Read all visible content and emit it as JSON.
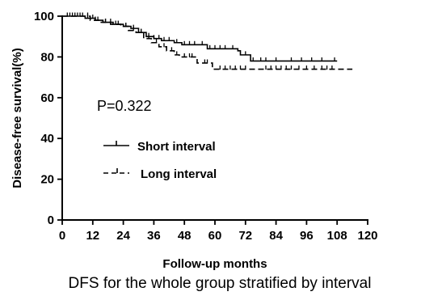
{
  "chart_data": {
    "type": "line",
    "subtype": "kaplan-meier-step",
    "title": "",
    "xlabel": "Follow-up months",
    "ylabel": "Disease-free survival(%)",
    "xlim": [
      0,
      120
    ],
    "ylim": [
      0,
      100
    ],
    "xticks": [
      0,
      12,
      24,
      36,
      48,
      60,
      72,
      84,
      96,
      108,
      120
    ],
    "yticks": [
      0,
      20,
      40,
      60,
      80,
      100
    ],
    "grid": false,
    "legend_position": "middle-left",
    "annotation": "P=0.322",
    "caption": "DFS for the whole group stratified by interval",
    "series": [
      {
        "name": "Short interval",
        "style": "solid",
        "steps": [
          [
            0,
            100
          ],
          [
            9,
            99
          ],
          [
            13,
            98
          ],
          [
            16,
            97
          ],
          [
            20,
            96
          ],
          [
            24,
            95
          ],
          [
            27,
            94
          ],
          [
            30,
            92
          ],
          [
            33,
            90
          ],
          [
            36,
            89
          ],
          [
            39,
            88
          ],
          [
            44,
            87
          ],
          [
            47,
            86
          ],
          [
            56,
            86
          ],
          [
            57,
            84
          ],
          [
            66,
            84
          ],
          [
            69,
            83
          ],
          [
            70,
            81
          ],
          [
            73,
            81
          ],
          [
            74,
            78
          ],
          [
            108,
            78
          ]
        ],
        "censored": [
          2,
          4,
          6,
          8,
          10,
          12,
          14,
          17,
          19,
          22,
          25,
          28,
          31,
          34,
          36,
          38,
          40,
          42,
          45,
          48,
          50,
          52,
          55,
          58,
          60,
          62,
          64,
          67,
          72,
          75,
          78,
          80,
          84,
          90,
          94,
          98,
          102,
          107
        ]
      },
      {
        "name": "Long interval",
        "style": "dashed",
        "steps": [
          [
            0,
            100
          ],
          [
            11,
            98
          ],
          [
            15,
            97
          ],
          [
            19,
            96
          ],
          [
            23,
            95
          ],
          [
            26,
            93
          ],
          [
            29,
            92
          ],
          [
            32,
            89
          ],
          [
            35,
            87
          ],
          [
            38,
            85
          ],
          [
            41,
            83
          ],
          [
            44,
            81
          ],
          [
            46,
            80
          ],
          [
            52,
            80
          ],
          [
            53,
            77
          ],
          [
            58,
            77
          ],
          [
            59,
            74
          ],
          [
            114,
            74
          ]
        ],
        "censored": [
          3,
          5,
          7,
          10,
          13,
          17,
          21,
          25,
          28,
          31,
          34,
          37,
          40,
          43,
          45,
          48,
          50,
          51,
          56,
          57,
          62,
          64,
          66,
          68,
          70,
          72,
          80,
          82,
          84,
          86,
          88,
          90,
          93,
          96,
          99,
          102,
          104,
          106
        ]
      }
    ]
  }
}
